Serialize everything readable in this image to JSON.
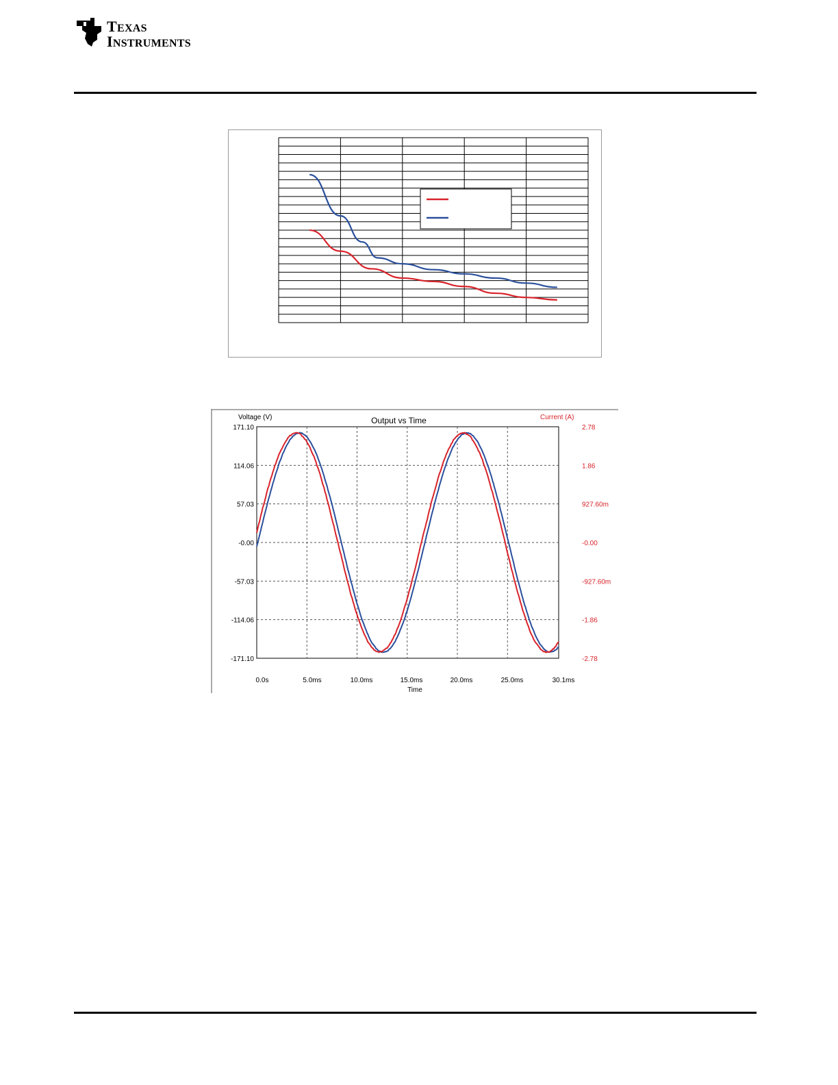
{
  "header": {
    "logo_line1": "Texas",
    "logo_line2": "Instruments"
  },
  "colors": {
    "red": "#d8232a",
    "blue": "#2a4f9c",
    "black": "#000000",
    "grid": "#808080"
  },
  "chart_data": [
    {
      "type": "line",
      "title": "",
      "xlabel": "",
      "ylabel": "",
      "grid": true,
      "legend_position": "upper-right",
      "xlim": [
        0,
        5
      ],
      "ylim": [
        0,
        22
      ],
      "x_gridlines": 5,
      "y_gridlines": 22,
      "series": [
        {
          "color": "red",
          "x": [
            0.5,
            1.0,
            1.5,
            2.0,
            2.5,
            3.0,
            3.5,
            4.0,
            4.5
          ],
          "y": [
            11.0,
            8.5,
            6.4,
            5.3,
            4.9,
            4.3,
            3.5,
            3.0,
            2.7
          ]
        },
        {
          "color": "blue",
          "x": [
            0.5,
            1.0,
            1.35,
            1.6,
            2.0,
            2.5,
            3.0,
            3.5,
            4.0,
            4.5
          ],
          "y": [
            17.6,
            12.7,
            9.6,
            7.7,
            7.0,
            6.3,
            5.8,
            5.3,
            4.7,
            4.2
          ]
        }
      ]
    },
    {
      "type": "line",
      "title": "Output vs Time",
      "xlabel": "Time",
      "ylabel_left": "Voltage (V)",
      "ylabel_right": "Current (A)",
      "grid": true,
      "xlim": [
        0,
        30.1
      ],
      "ylim_left": [
        -171.1,
        171.1
      ],
      "ylim_right": [
        -2.78,
        2.78
      ],
      "x_ticks": [
        "0.0s",
        "5.0ms",
        "10.0ms",
        "15.0ms",
        "20.0ms",
        "25.0ms",
        "30.1ms"
      ],
      "y_ticks_left": [
        "171.10",
        "114.06",
        "57.03",
        "-0.00",
        "-57.03",
        "-114.06",
        "-171.10"
      ],
      "y_ticks_right": [
        "2.78",
        "1.86",
        "927.60m",
        "-0.00",
        "-927.60m",
        "-1.86",
        "-2.78"
      ],
      "series": [
        {
          "name": "Voltage (V)",
          "color": "blue",
          "axis": "left",
          "amplitude": 162,
          "period_ms": 16.67,
          "phase_ms": 0.1,
          "sample_step_ms": 0.1
        },
        {
          "name": "Current (A)",
          "color": "red",
          "axis": "right",
          "amplitude": 2.63,
          "period_ms": 16.67,
          "phase_ms": -0.25,
          "sample_step_ms": 0.1
        }
      ]
    }
  ]
}
